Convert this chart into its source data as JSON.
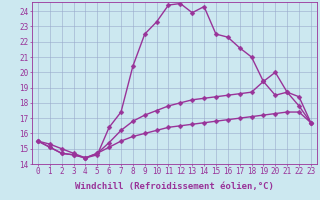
{
  "xlabel": "Windchill (Refroidissement éolien,°C)",
  "background_color": "#cce8f0",
  "line_color": "#993399",
  "grid_color": "#99aacc",
  "xlim": [
    -0.5,
    23.5
  ],
  "ylim": [
    14,
    24.6
  ],
  "yticks": [
    14,
    15,
    16,
    17,
    18,
    19,
    20,
    21,
    22,
    23,
    24
  ],
  "xticks": [
    0,
    1,
    2,
    3,
    4,
    5,
    6,
    7,
    8,
    9,
    10,
    11,
    12,
    13,
    14,
    15,
    16,
    17,
    18,
    19,
    20,
    21,
    22,
    23
  ],
  "series": [
    [
      15.5,
      15.3,
      15.0,
      14.7,
      14.4,
      14.6,
      16.4,
      17.4,
      20.4,
      22.5,
      23.3,
      24.4,
      24.5,
      23.9,
      24.3,
      22.5,
      22.3,
      21.6,
      21.0,
      19.4,
      20.0,
      18.7,
      17.8,
      16.7
    ],
    [
      15.5,
      15.1,
      14.7,
      14.6,
      14.4,
      14.7,
      15.4,
      16.2,
      16.8,
      17.2,
      17.5,
      17.8,
      18.0,
      18.2,
      18.3,
      18.4,
      18.5,
      18.6,
      18.7,
      19.4,
      18.5,
      18.7,
      18.4,
      16.7
    ],
    [
      15.5,
      15.1,
      14.7,
      14.6,
      14.4,
      14.7,
      15.1,
      15.5,
      15.8,
      16.0,
      16.2,
      16.4,
      16.5,
      16.6,
      16.7,
      16.8,
      16.9,
      17.0,
      17.1,
      17.2,
      17.3,
      17.4,
      17.4,
      16.7
    ]
  ],
  "marker": "D",
  "marker_size": 2.5,
  "line_width": 1.0,
  "tick_labelsize": 5.5,
  "xlabel_fontsize": 6.5
}
